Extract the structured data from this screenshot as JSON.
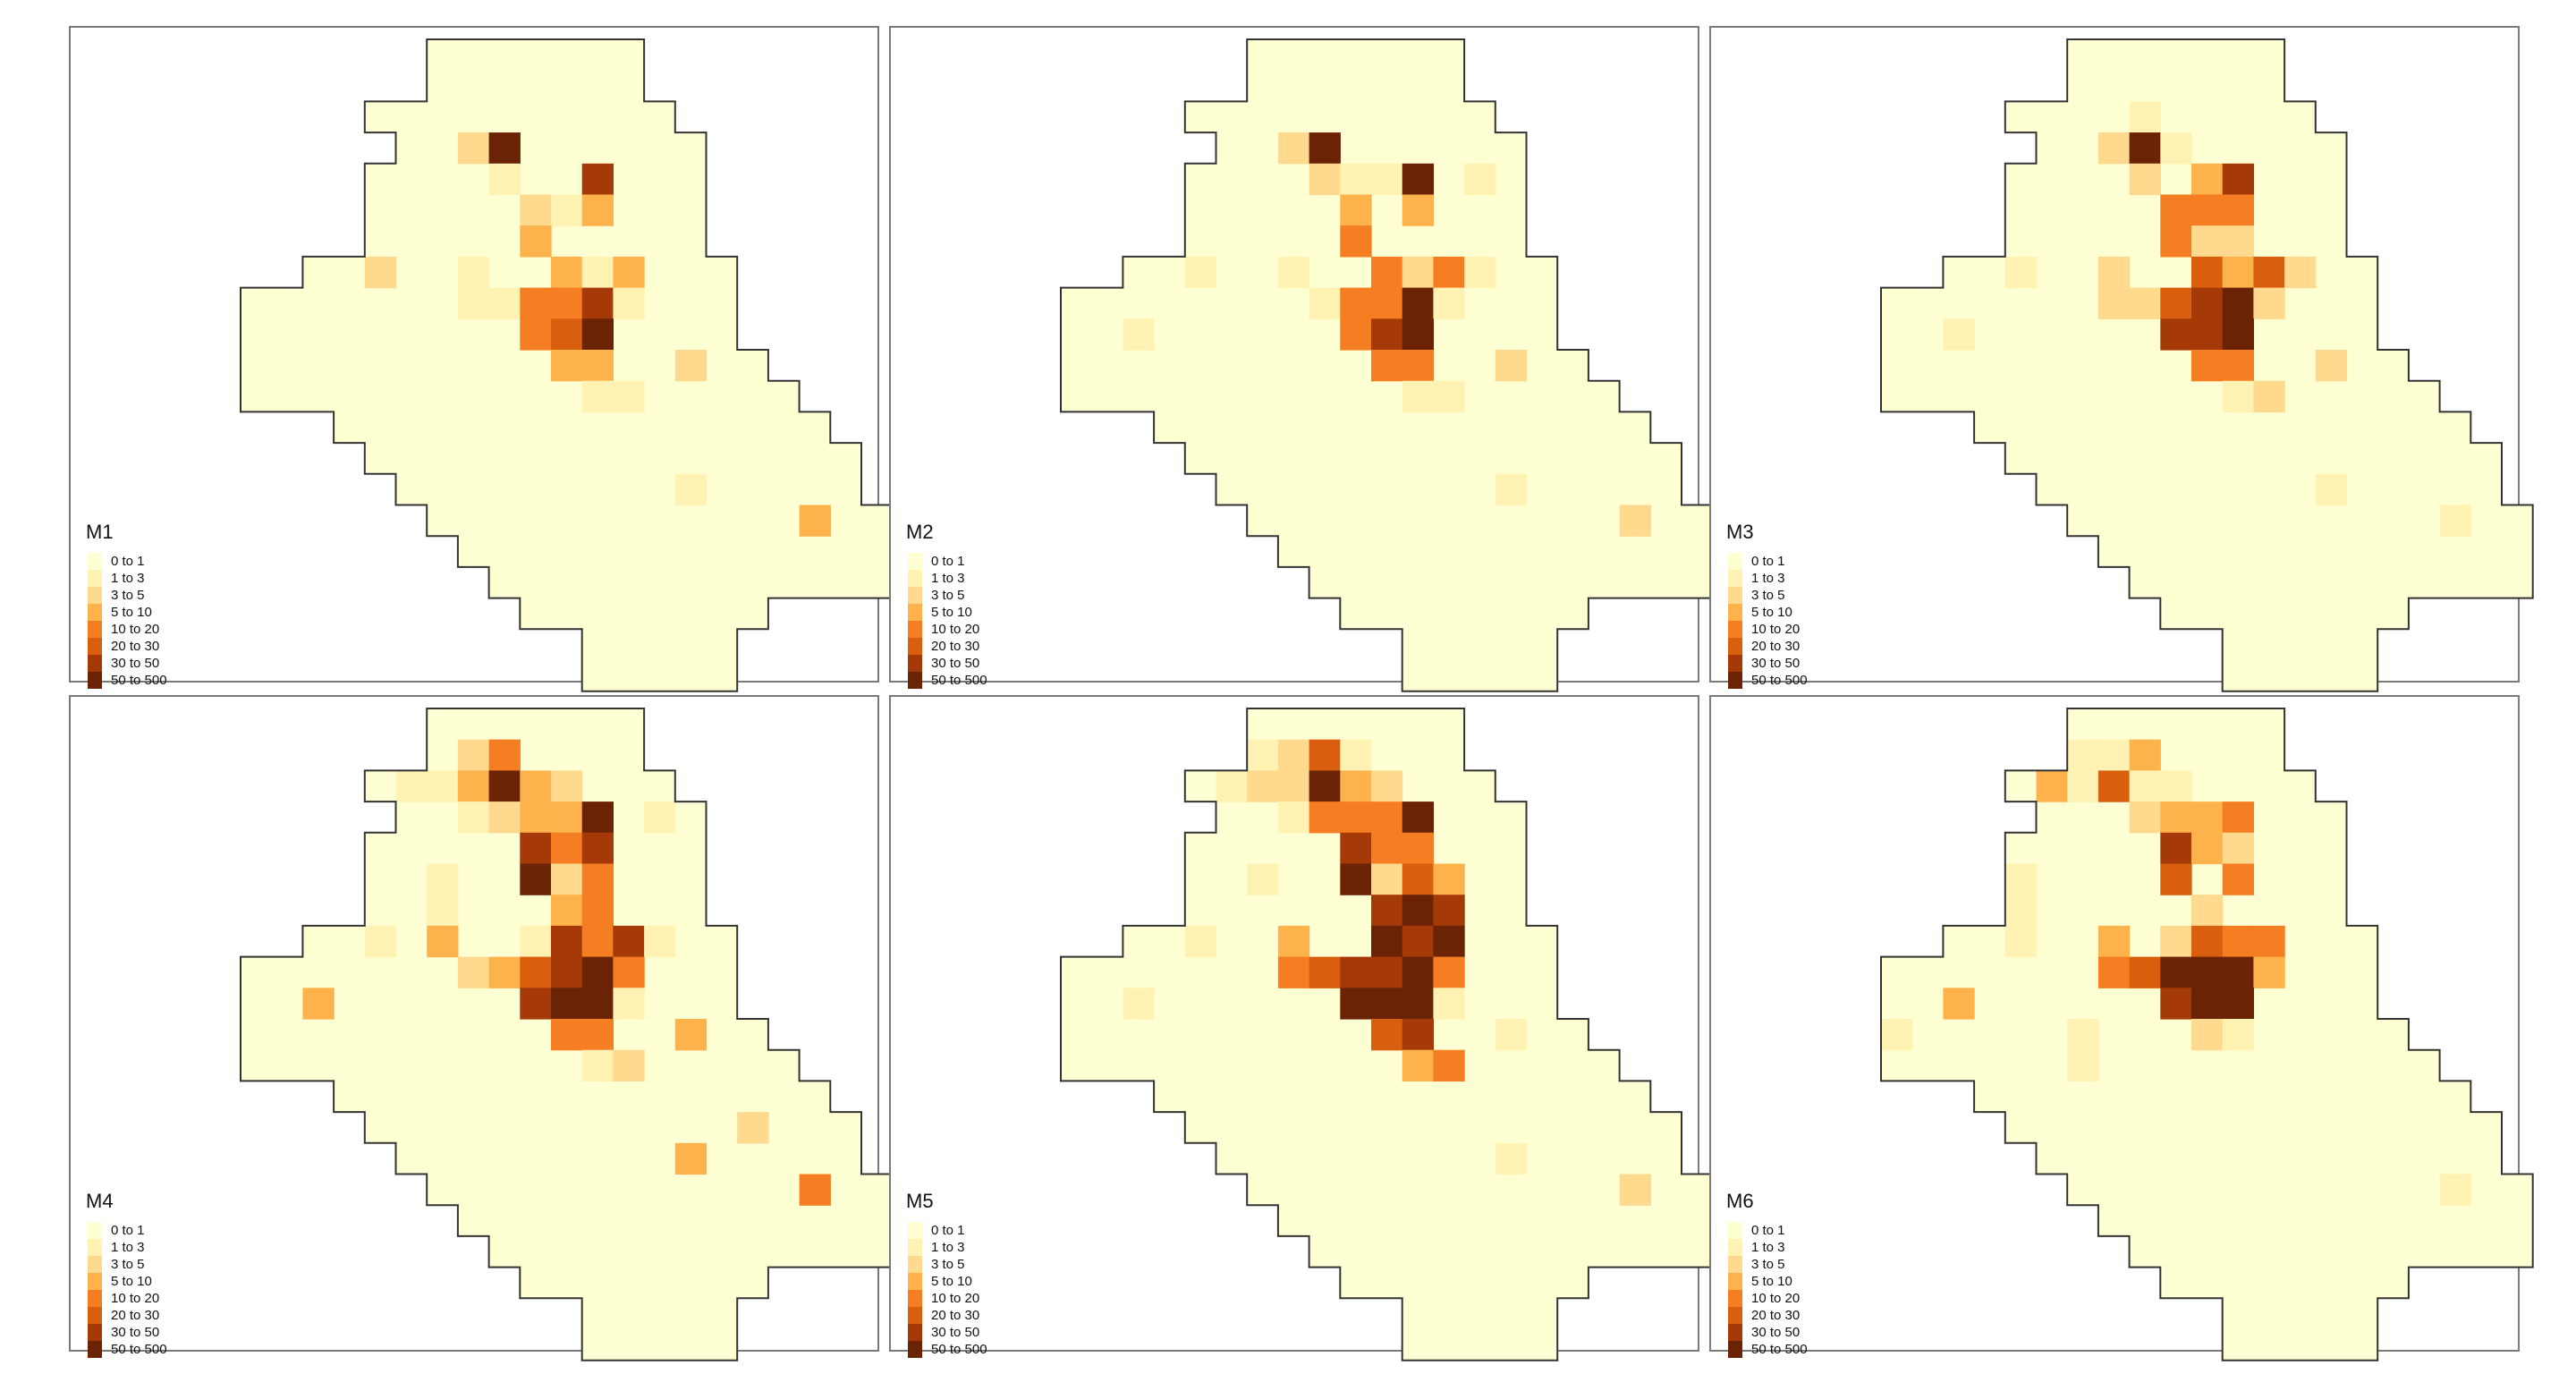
{
  "panels": [
    {
      "title": "M1"
    },
    {
      "title": "M2"
    },
    {
      "title": "M3"
    },
    {
      "title": "M4"
    },
    {
      "title": "M5"
    },
    {
      "title": "M6"
    }
  ],
  "legend": {
    "classes": [
      {
        "label": "0 to 1",
        "color": "#FFFFD4"
      },
      {
        "label": "1 to 3",
        "color": "#FFF2B2"
      },
      {
        "label": "3 to 5",
        "color": "#FED98E"
      },
      {
        "label": "5 to 10",
        "color": "#FEB24C"
      },
      {
        "label": "10 to 20",
        "color": "#F67E22"
      },
      {
        "label": "20 to 30",
        "color": "#D95F0E"
      },
      {
        "label": "30 to 50",
        "color": "#A53A08"
      },
      {
        "label": "50 to 500",
        "color": "#6B2306"
      }
    ]
  },
  "map_grid": {
    "cols": 20,
    "rows": 21,
    "outline_rows": [
      [
        6,
        12
      ],
      [
        6,
        12
      ],
      [
        4,
        13
      ],
      [
        5,
        14
      ],
      [
        4,
        14
      ],
      [
        4,
        14
      ],
      [
        4,
        14
      ],
      [
        2,
        15
      ],
      [
        0,
        15
      ],
      [
        0,
        15
      ],
      [
        0,
        16
      ],
      [
        0,
        17
      ],
      [
        3,
        18
      ],
      [
        4,
        19
      ],
      [
        5,
        19
      ],
      [
        6,
        20
      ],
      [
        7,
        20
      ],
      [
        8,
        20
      ],
      [
        9,
        16
      ],
      [
        11,
        15
      ],
      [
        11,
        15
      ]
    ],
    "class_cells": [
      [
        [
          3,
          7,
          2
        ],
        [
          3,
          8,
          7
        ],
        [
          4,
          8,
          1
        ],
        [
          4,
          11,
          6
        ],
        [
          5,
          9,
          2
        ],
        [
          5,
          10,
          1
        ],
        [
          5,
          11,
          3
        ],
        [
          6,
          9,
          3
        ],
        [
          7,
          4,
          2
        ],
        [
          7,
          7,
          1
        ],
        [
          7,
          10,
          3
        ],
        [
          7,
          11,
          1
        ],
        [
          7,
          12,
          3
        ],
        [
          8,
          7,
          1
        ],
        [
          8,
          8,
          1
        ],
        [
          8,
          9,
          4
        ],
        [
          8,
          10,
          4
        ],
        [
          8,
          11,
          6
        ],
        [
          8,
          12,
          1
        ],
        [
          9,
          9,
          4
        ],
        [
          9,
          10,
          5
        ],
        [
          9,
          11,
          7
        ],
        [
          10,
          10,
          3
        ],
        [
          10,
          11,
          3
        ],
        [
          10,
          14,
          2
        ],
        [
          11,
          11,
          1
        ],
        [
          11,
          12,
          1
        ],
        [
          14,
          14,
          1
        ],
        [
          15,
          18,
          3
        ]
      ],
      [
        [
          3,
          7,
          2
        ],
        [
          3,
          8,
          7
        ],
        [
          4,
          8,
          2
        ],
        [
          4,
          9,
          1
        ],
        [
          4,
          10,
          1
        ],
        [
          4,
          11,
          7
        ],
        [
          4,
          13,
          1
        ],
        [
          5,
          9,
          3
        ],
        [
          5,
          11,
          3
        ],
        [
          6,
          9,
          4
        ],
        [
          7,
          4,
          1
        ],
        [
          7,
          7,
          1
        ],
        [
          7,
          10,
          4
        ],
        [
          7,
          11,
          2
        ],
        [
          7,
          12,
          4
        ],
        [
          7,
          13,
          1
        ],
        [
          8,
          8,
          1
        ],
        [
          8,
          9,
          4
        ],
        [
          8,
          10,
          4
        ],
        [
          8,
          11,
          7
        ],
        [
          8,
          12,
          1
        ],
        [
          9,
          2,
          1
        ],
        [
          9,
          9,
          4
        ],
        [
          9,
          10,
          6
        ],
        [
          9,
          11,
          7
        ],
        [
          10,
          10,
          4
        ],
        [
          10,
          11,
          4
        ],
        [
          10,
          14,
          2
        ],
        [
          11,
          11,
          1
        ],
        [
          11,
          12,
          1
        ],
        [
          14,
          14,
          1
        ],
        [
          15,
          18,
          2
        ]
      ],
      [
        [
          2,
          8,
          1
        ],
        [
          3,
          7,
          2
        ],
        [
          3,
          8,
          7
        ],
        [
          3,
          9,
          1
        ],
        [
          4,
          8,
          2
        ],
        [
          4,
          10,
          3
        ],
        [
          4,
          11,
          6
        ],
        [
          5,
          9,
          4
        ],
        [
          5,
          10,
          4
        ],
        [
          5,
          11,
          4
        ],
        [
          6,
          9,
          4
        ],
        [
          6,
          10,
          2
        ],
        [
          6,
          11,
          2
        ],
        [
          7,
          4,
          1
        ],
        [
          7,
          7,
          2
        ],
        [
          7,
          10,
          5
        ],
        [
          7,
          11,
          3
        ],
        [
          7,
          12,
          5
        ],
        [
          7,
          13,
          2
        ],
        [
          8,
          7,
          2
        ],
        [
          8,
          8,
          2
        ],
        [
          8,
          9,
          5
        ],
        [
          8,
          10,
          6
        ],
        [
          8,
          11,
          7
        ],
        [
          8,
          12,
          2
        ],
        [
          9,
          2,
          1
        ],
        [
          9,
          9,
          6
        ],
        [
          9,
          10,
          6
        ],
        [
          9,
          11,
          7
        ],
        [
          10,
          10,
          4
        ],
        [
          10,
          11,
          4
        ],
        [
          10,
          14,
          2
        ],
        [
          11,
          11,
          1
        ],
        [
          11,
          12,
          2
        ],
        [
          14,
          14,
          1
        ],
        [
          15,
          18,
          1
        ]
      ],
      [
        [
          1,
          7,
          2
        ],
        [
          1,
          8,
          4
        ],
        [
          2,
          5,
          1
        ],
        [
          2,
          6,
          1
        ],
        [
          2,
          7,
          3
        ],
        [
          2,
          8,
          7
        ],
        [
          2,
          9,
          3
        ],
        [
          2,
          10,
          2
        ],
        [
          3,
          7,
          1
        ],
        [
          3,
          8,
          2
        ],
        [
          3,
          9,
          3
        ],
        [
          3,
          10,
          3
        ],
        [
          3,
          11,
          7
        ],
        [
          3,
          13,
          1
        ],
        [
          4,
          9,
          6
        ],
        [
          4,
          10,
          4
        ],
        [
          4,
          11,
          6
        ],
        [
          5,
          6,
          1
        ],
        [
          5,
          9,
          7
        ],
        [
          5,
          10,
          2
        ],
        [
          5,
          11,
          4
        ],
        [
          6,
          6,
          1
        ],
        [
          6,
          10,
          3
        ],
        [
          6,
          11,
          4
        ],
        [
          7,
          4,
          1
        ],
        [
          7,
          6,
          3
        ],
        [
          7,
          9,
          1
        ],
        [
          7,
          10,
          6
        ],
        [
          7,
          11,
          4
        ],
        [
          7,
          12,
          6
        ],
        [
          7,
          13,
          1
        ],
        [
          8,
          7,
          2
        ],
        [
          8,
          8,
          3
        ],
        [
          8,
          9,
          5
        ],
        [
          8,
          10,
          6
        ],
        [
          8,
          11,
          7
        ],
        [
          8,
          12,
          4
        ],
        [
          9,
          2,
          3
        ],
        [
          9,
          9,
          6
        ],
        [
          9,
          10,
          7
        ],
        [
          9,
          11,
          7
        ],
        [
          9,
          12,
          1
        ],
        [
          10,
          10,
          4
        ],
        [
          10,
          11,
          4
        ],
        [
          10,
          14,
          3
        ],
        [
          11,
          11,
          1
        ],
        [
          11,
          12,
          2
        ],
        [
          13,
          16,
          2
        ],
        [
          14,
          14,
          3
        ],
        [
          15,
          18,
          4
        ]
      ],
      [
        [
          1,
          6,
          1
        ],
        [
          1,
          7,
          2
        ],
        [
          1,
          8,
          5
        ],
        [
          1,
          9,
          1
        ],
        [
          2,
          5,
          1
        ],
        [
          2,
          6,
          2
        ],
        [
          2,
          7,
          2
        ],
        [
          2,
          8,
          7
        ],
        [
          2,
          9,
          3
        ],
        [
          2,
          10,
          2
        ],
        [
          3,
          7,
          1
        ],
        [
          3,
          8,
          4
        ],
        [
          3,
          9,
          4
        ],
        [
          3,
          10,
          4
        ],
        [
          3,
          11,
          7
        ],
        [
          4,
          9,
          6
        ],
        [
          4,
          10,
          4
        ],
        [
          4,
          11,
          4
        ],
        [
          5,
          6,
          1
        ],
        [
          5,
          9,
          7
        ],
        [
          5,
          10,
          2
        ],
        [
          5,
          11,
          5
        ],
        [
          5,
          12,
          3
        ],
        [
          6,
          10,
          6
        ],
        [
          6,
          11,
          7
        ],
        [
          6,
          12,
          6
        ],
        [
          7,
          4,
          1
        ],
        [
          7,
          7,
          3
        ],
        [
          7,
          10,
          7
        ],
        [
          7,
          11,
          6
        ],
        [
          7,
          12,
          7
        ],
        [
          8,
          7,
          4
        ],
        [
          8,
          8,
          5
        ],
        [
          8,
          9,
          6
        ],
        [
          8,
          10,
          6
        ],
        [
          8,
          11,
          7
        ],
        [
          8,
          12,
          4
        ],
        [
          9,
          2,
          1
        ],
        [
          9,
          9,
          7
        ],
        [
          9,
          10,
          7
        ],
        [
          9,
          11,
          7
        ],
        [
          9,
          12,
          1
        ],
        [
          10,
          10,
          5
        ],
        [
          10,
          11,
          6
        ],
        [
          10,
          14,
          1
        ],
        [
          11,
          11,
          3
        ],
        [
          11,
          12,
          4
        ],
        [
          14,
          14,
          1
        ],
        [
          15,
          18,
          2
        ]
      ],
      [
        [
          1,
          6,
          1
        ],
        [
          1,
          7,
          1
        ],
        [
          1,
          8,
          3
        ],
        [
          2,
          5,
          3
        ],
        [
          2,
          6,
          1
        ],
        [
          2,
          7,
          5
        ],
        [
          2,
          8,
          1
        ],
        [
          2,
          9,
          1
        ],
        [
          3,
          8,
          2
        ],
        [
          3,
          9,
          3
        ],
        [
          3,
          10,
          3
        ],
        [
          3,
          11,
          4
        ],
        [
          4,
          9,
          6
        ],
        [
          4,
          10,
          3
        ],
        [
          4,
          11,
          2
        ],
        [
          5,
          4,
          1
        ],
        [
          5,
          9,
          5
        ],
        [
          5,
          11,
          4
        ],
        [
          6,
          4,
          1
        ],
        [
          6,
          10,
          2
        ],
        [
          7,
          4,
          1
        ],
        [
          7,
          7,
          3
        ],
        [
          7,
          9,
          2
        ],
        [
          7,
          10,
          5
        ],
        [
          7,
          11,
          4
        ],
        [
          7,
          12,
          4
        ],
        [
          8,
          7,
          4
        ],
        [
          8,
          8,
          5
        ],
        [
          8,
          9,
          7
        ],
        [
          8,
          10,
          7
        ],
        [
          8,
          11,
          7
        ],
        [
          8,
          12,
          3
        ],
        [
          9,
          2,
          3
        ],
        [
          9,
          9,
          6
        ],
        [
          9,
          10,
          7
        ],
        [
          9,
          11,
          7
        ],
        [
          10,
          0,
          1
        ],
        [
          10,
          6,
          1
        ],
        [
          10,
          10,
          2
        ],
        [
          10,
          11,
          1
        ],
        [
          11,
          6,
          1
        ],
        [
          15,
          18,
          1
        ]
      ]
    ]
  }
}
